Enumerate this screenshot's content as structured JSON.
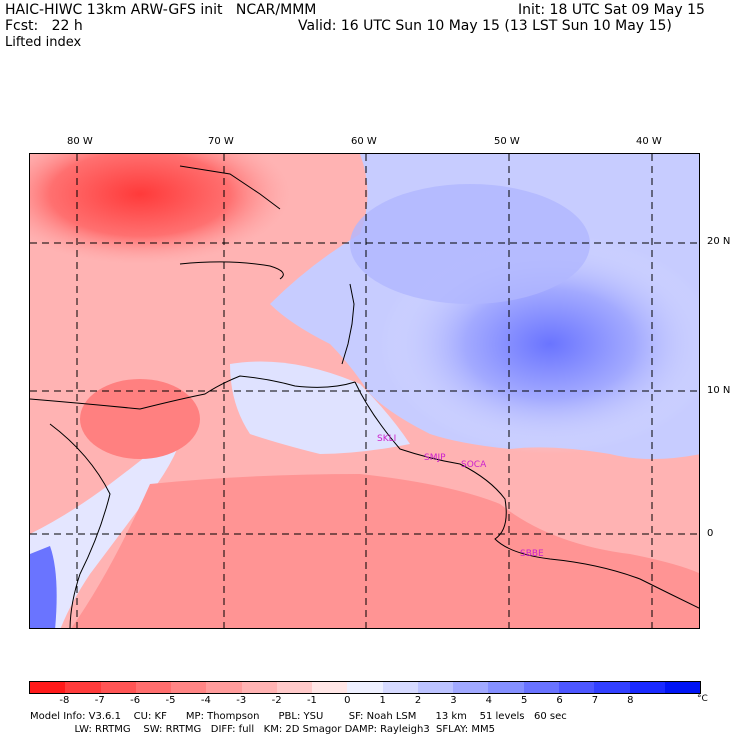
{
  "header": {
    "left_line1": "HAIC-HIWC 13km ARW-GFS init   NCAR/MMM",
    "left_line2": "Fcst:   22 h",
    "left_line3": "Lifted index",
    "right_line1": "Init: 18 UTC Sat 09 May 15",
    "right_line2": "Valid: 16 UTC Sun 10 May 15 (13 LST Sun 10 May 15)"
  },
  "map": {
    "longitude_labels": [
      "80 W",
      "70 W",
      "60 W",
      "50 W",
      "40 W"
    ],
    "latitude_labels": [
      "20 N",
      "10 N",
      "0"
    ],
    "station_labels": [
      "SKLI",
      "SMJP",
      "SOCA",
      "SBBE"
    ]
  },
  "colorbar": {
    "ticks": [
      "-8",
      "-7",
      "-6",
      "-5",
      "-4",
      "-3",
      "-2",
      "-1",
      "0",
      "1",
      "2",
      "3",
      "4",
      "5",
      "6",
      "7",
      "8"
    ],
    "unit": "°C",
    "colors": [
      "#ff1a1a",
      "#ff3b3b",
      "#ff5555",
      "#ff6e6e",
      "#ff8585",
      "#ff9c9c",
      "#ffb3b3",
      "#ffcaca",
      "#ffe6e6",
      "#eef0ff",
      "#d6daff",
      "#bcc3ff",
      "#a1a9ff",
      "#8590ff",
      "#6973ff",
      "#4d57ff",
      "#3240ff",
      "#1a2aff",
      "#0014f5"
    ]
  },
  "footer": {
    "line1": "Model Info: V3.6.1    CU: KF      MP: Thompson      PBL: YSU        SF: Noah LSM      13 km    51 levels   60 sec",
    "line2": "              LW: RRTMG    SW: RRTMG   DIFF: full   KM: 2D Smagor DAMP: Rayleigh3  SFLAY: MM5"
  },
  "colors": {
    "unstable": "#ff3030",
    "stable": "#4050ff"
  }
}
